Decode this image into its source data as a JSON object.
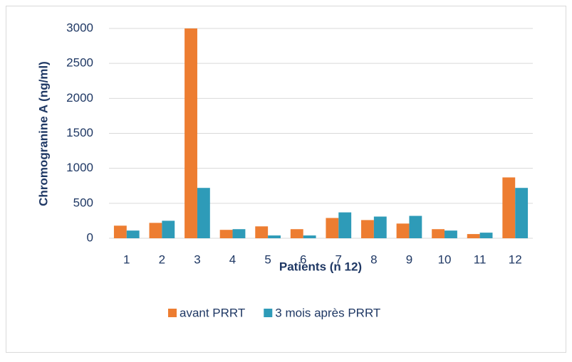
{
  "chart_data": {
    "type": "bar",
    "y_label": "Chromogranine A (ng/ml)",
    "x_label": "Patients (n 12)",
    "categories": [
      "1",
      "2",
      "3",
      "4",
      "5",
      "6",
      "7",
      "8",
      "9",
      "10",
      "11",
      "12"
    ],
    "series": [
      {
        "name": "avant PRRT",
        "color": "#ed7d31",
        "values": [
          180,
          220,
          3000,
          120,
          170,
          130,
          290,
          260,
          210,
          130,
          60,
          870
        ]
      },
      {
        "name": "3 mois après PRRT",
        "color": "#2e9bb8",
        "values": [
          110,
          250,
          720,
          130,
          40,
          40,
          370,
          310,
          320,
          110,
          80,
          720
        ]
      }
    ],
    "ylim": [
      0,
      3000
    ],
    "yticks": [
      0,
      500,
      1000,
      1500,
      2000,
      2500,
      3000
    ],
    "grid": true,
    "legend": "bottom"
  }
}
